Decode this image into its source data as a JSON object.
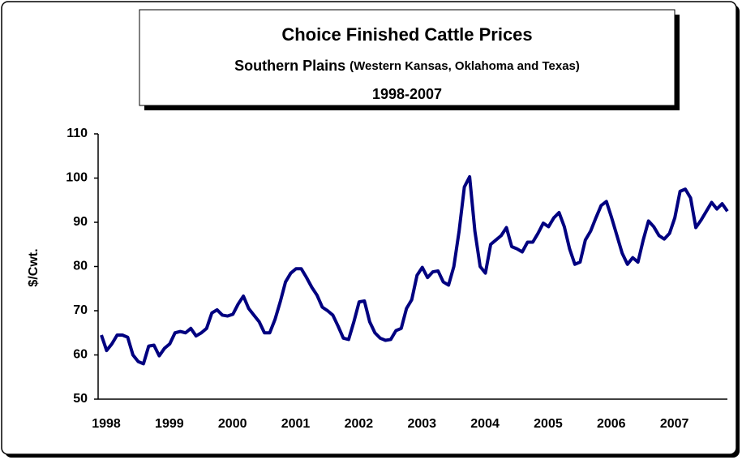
{
  "chart_data": {
    "type": "line",
    "title": "Choice Finished Cattle Prices",
    "subtitle": "Southern Plains ",
    "subtitle_note": "(Western Kansas, Oklahoma and Texas)",
    "period": "1998-2007",
    "y_label": "$/Cwt.",
    "categories": [
      "1998",
      null,
      null,
      null,
      null,
      null,
      null,
      null,
      null,
      null,
      null,
      null,
      "1999",
      null,
      null,
      null,
      null,
      null,
      null,
      null,
      null,
      null,
      null,
      null,
      "2000",
      null,
      null,
      null,
      null,
      null,
      null,
      null,
      null,
      null,
      null,
      null,
      "2001",
      null,
      null,
      null,
      null,
      null,
      null,
      null,
      null,
      null,
      null,
      null,
      "2002",
      null,
      null,
      null,
      null,
      null,
      null,
      null,
      null,
      null,
      null,
      null,
      "2003",
      null,
      null,
      null,
      null,
      null,
      null,
      null,
      null,
      null,
      null,
      null,
      "2004",
      null,
      null,
      null,
      null,
      null,
      null,
      null,
      null,
      null,
      null,
      null,
      "2005",
      null,
      null,
      null,
      null,
      null,
      null,
      null,
      null,
      null,
      null,
      null,
      "2006",
      null,
      null,
      null,
      null,
      null,
      null,
      null,
      null,
      null,
      null,
      null,
      "2007",
      null,
      null,
      null,
      null,
      null,
      null,
      null,
      null,
      null,
      null,
      null
    ],
    "values": [
      64.5,
      61,
      62.5,
      64.5,
      64.5,
      64,
      60,
      58.5,
      58,
      62,
      62.2,
      59.8,
      61.5,
      62.5,
      65,
      65.3,
      65,
      66,
      64.3,
      65,
      66,
      69.5,
      70.2,
      69,
      68.8,
      69.2,
      71.5,
      73.3,
      70.5,
      69,
      67.5,
      65,
      65,
      68,
      72,
      76.5,
      78.5,
      79.5,
      79.5,
      77.5,
      75.3,
      73.5,
      70.8,
      70,
      69,
      66.5,
      63.8,
      63.5,
      67.5,
      72,
      72.2,
      67.5,
      65,
      63.8,
      63.3,
      63.5,
      65.5,
      66,
      70.5,
      72.5,
      78,
      79.8,
      77.5,
      78.8,
      79,
      76.5,
      75.8,
      80,
      88,
      98,
      100.3,
      88,
      80,
      78.5,
      85,
      86,
      87,
      88.8,
      84.5,
      84,
      83.3,
      85.5,
      85.5,
      87.5,
      89.8,
      89,
      91,
      92.2,
      89,
      84,
      80.5,
      81,
      86,
      88,
      91,
      93.8,
      94.7,
      91,
      87,
      83,
      80.5,
      82,
      81,
      86,
      90.3,
      89,
      87,
      86.2,
      87.5,
      91,
      97,
      97.5,
      95.5,
      88.8,
      90.5,
      92.5,
      94.5,
      93,
      94.2,
      92.5
    ],
    "color": "#000080",
    "ylim": [
      50,
      110
    ],
    "yticks": [
      50,
      60,
      70,
      80,
      90,
      100,
      110
    ],
    "grid": false
  }
}
